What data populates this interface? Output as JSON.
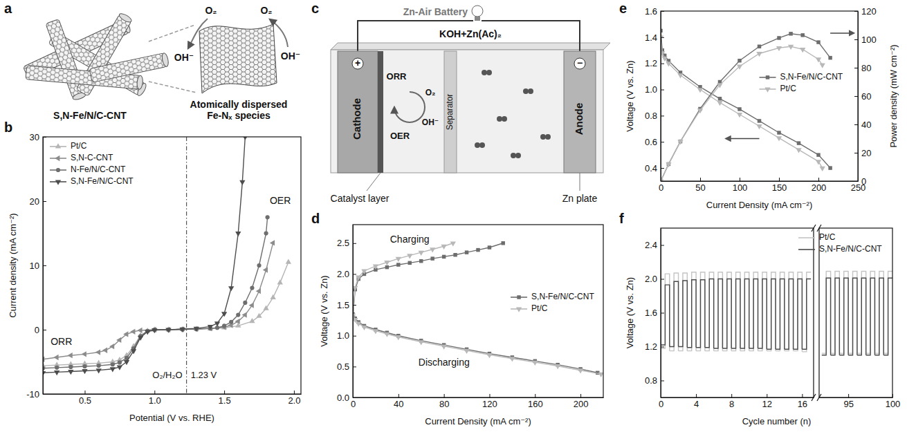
{
  "chart_data": [
    {
      "panel_label": "b",
      "type": "line",
      "x_label": "Potential (V vs. RHE)",
      "y_label": "Current density (mA cm⁻²)",
      "xlim": [
        0.2,
        2.05
      ],
      "xticks": [
        0.5,
        {
          "value": 1,
          "label": "1.0"
        },
        1.5,
        {
          "value": 2,
          "label": "2.0"
        }
      ],
      "ylim": [
        -10,
        30
      ],
      "yticks": [
        -10,
        0,
        10,
        20,
        30
      ],
      "legend": "upper left",
      "annotations": [
        "ORR",
        "OER"
      ],
      "reference_line": {
        "value": 1.23,
        "labels": [
          "O₂/H₂O",
          "1.23 V"
        ]
      },
      "series": [
        {
          "name": "Pt/C",
          "color": "#b5b5b5",
          "marker": "triangle-up",
          "x": [
            0.2,
            0.3,
            0.4,
            0.5,
            0.6,
            0.7,
            0.75,
            0.8,
            0.85,
            0.9,
            0.95,
            1.0,
            1.1,
            1.2,
            1.3,
            1.4,
            1.5,
            1.6,
            1.7,
            1.75,
            1.8,
            1.85,
            1.9,
            1.96
          ],
          "values": [
            -5.6,
            -5.5,
            -5.4,
            -5.3,
            -5.2,
            -5.0,
            -4.7,
            -4.0,
            -2.6,
            -0.9,
            -0.2,
            0,
            0,
            0.05,
            0.1,
            0.15,
            0.3,
            0.6,
            1.3,
            2.1,
            3.3,
            5.0,
            7.3,
            10.5
          ]
        },
        {
          "name": "S,N-C-CNT",
          "color": "#8c8c8c",
          "marker": "triangle-left",
          "x": [
            0.2,
            0.3,
            0.4,
            0.5,
            0.6,
            0.65,
            0.7,
            0.75,
            0.8,
            0.85,
            0.9,
            1.0,
            1.1,
            1.2,
            1.3,
            1.4,
            1.5,
            1.55,
            1.6,
            1.65,
            1.7,
            1.75,
            1.8,
            1.85
          ],
          "values": [
            -4.6,
            -4.3,
            -4.0,
            -3.8,
            -3.5,
            -3.2,
            -2.6,
            -1.6,
            -0.7,
            -0.3,
            -0.1,
            0,
            0,
            0.05,
            0.1,
            0.2,
            0.4,
            0.7,
            1.3,
            2.3,
            3.8,
            6.0,
            9.3,
            13.5
          ]
        },
        {
          "name": "N-Fe/N/C-CNT",
          "color": "#6e6e6e",
          "marker": "circle",
          "x": [
            0.2,
            0.3,
            0.4,
            0.5,
            0.6,
            0.7,
            0.75,
            0.8,
            0.85,
            0.9,
            0.95,
            1.0,
            1.1,
            1.2,
            1.3,
            1.4,
            1.45,
            1.5,
            1.55,
            1.6,
            1.65,
            1.7,
            1.75,
            1.8,
            1.81
          ],
          "values": [
            -6.0,
            -5.9,
            -5.8,
            -5.7,
            -5.6,
            -5.4,
            -5.1,
            -4.4,
            -2.9,
            -1.0,
            -0.2,
            0,
            0,
            0.05,
            0.1,
            0.2,
            0.3,
            0.6,
            1.2,
            2.3,
            4.2,
            6.5,
            10,
            15,
            17.5
          ]
        },
        {
          "name": "S,N-Fe/N/C-CNT",
          "color": "#4d4d4d",
          "marker": "triangle-down",
          "x": [
            0.2,
            0.3,
            0.4,
            0.5,
            0.6,
            0.7,
            0.75,
            0.8,
            0.85,
            0.9,
            0.95,
            1.0,
            1.1,
            1.2,
            1.3,
            1.4,
            1.45,
            1.5,
            1.55,
            1.6,
            1.63,
            1.65
          ],
          "values": [
            -6.7,
            -6.6,
            -6.5,
            -6.4,
            -6.3,
            -6.1,
            -5.8,
            -5.0,
            -3.3,
            -1.2,
            -0.3,
            -0.05,
            0,
            0.1,
            0.2,
            0.5,
            1.0,
            2.5,
            6.5,
            15,
            23,
            30
          ]
        }
      ]
    },
    {
      "panel_label": "d",
      "type": "line",
      "x_label": "Current Density (mA cm⁻²)",
      "y_label": "Voltage (V vs. Zn)",
      "xlim": [
        0,
        220
      ],
      "xticks": [
        0,
        40,
        80,
        120,
        160,
        200
      ],
      "ylim": [
        0,
        2.8
      ],
      "yticks": [
        {
          "value": 0,
          "label": "0.0"
        },
        0.5,
        {
          "value": 1,
          "label": "1.0"
        },
        1.5,
        {
          "value": 2,
          "label": "2.0"
        },
        2.5
      ],
      "legend": "right",
      "annotations": [
        "Charging",
        "Discharging"
      ],
      "series": [
        {
          "name": "S,N-Fe/N/C-CNT",
          "color": "#6d6d6d",
          "marker": "square",
          "x": [
            0,
            2,
            5,
            10,
            20,
            30,
            40,
            50,
            60,
            70,
            80,
            90,
            100,
            110,
            120,
            132
          ],
          "values": [
            1.3,
            1.75,
            1.92,
            2.0,
            2.07,
            2.11,
            2.15,
            2.18,
            2.21,
            2.25,
            2.28,
            2.31,
            2.35,
            2.39,
            2.43,
            2.5
          ]
        },
        {
          "name": "Pt/C",
          "color": "#b8b8b8",
          "marker": "triangle-down",
          "x": [
            0,
            2,
            5,
            10,
            20,
            30,
            40,
            50,
            60,
            70,
            80,
            88
          ],
          "values": [
            1.3,
            1.78,
            1.95,
            2.05,
            2.13,
            2.19,
            2.25,
            2.3,
            2.35,
            2.4,
            2.45,
            2.5
          ]
        },
        {
          "name": "S,N-Fe/N/C-CNT",
          "color": "#6d6d6d",
          "marker": "square",
          "x": [
            0,
            2,
            5,
            10,
            20,
            30,
            40,
            60,
            80,
            100,
            120,
            140,
            160,
            180,
            200,
            215
          ],
          "values": [
            1.35,
            1.28,
            1.22,
            1.16,
            1.1,
            1.05,
            1.0,
            0.92,
            0.85,
            0.78,
            0.71,
            0.65,
            0.59,
            0.53,
            0.46,
            0.4
          ]
        },
        {
          "name": "Pt/C",
          "color": "#b8b8b8",
          "marker": "triangle-down",
          "x": [
            0,
            2,
            5,
            10,
            20,
            30,
            40,
            60,
            80,
            100,
            120,
            140,
            160,
            180,
            200,
            218
          ],
          "values": [
            1.33,
            1.26,
            1.2,
            1.14,
            1.08,
            1.03,
            0.98,
            0.9,
            0.83,
            0.76,
            0.69,
            0.63,
            0.57,
            0.51,
            0.44,
            0.38
          ]
        }
      ]
    },
    {
      "panel_label": "e",
      "type": "line",
      "x_label": "Current Density (mA cm⁻²)",
      "y_label": "Voltage (V vs. Zn)",
      "y2_label": "Power density (mW cm⁻²)",
      "xlim": [
        0,
        250
      ],
      "xticks": [
        0,
        50,
        100,
        150,
        200,
        250
      ],
      "ylim": [
        0.3,
        1.6
      ],
      "yticks": [
        0.4,
        0.6,
        0.8,
        {
          "value": 1,
          "label": "1.0"
        },
        1.2,
        1.4,
        1.6
      ],
      "y2lim": [
        0,
        120
      ],
      "y2ticks": [
        0,
        20,
        40,
        60,
        80,
        100,
        120
      ],
      "legend": "center right",
      "series": [
        {
          "name": "S,N-Fe/N/C-CNT",
          "color": "#6d6d6d",
          "marker": "square",
          "x": [
            0,
            2,
            5,
            10,
            25,
            50,
            75,
            100,
            125,
            150,
            175,
            200,
            215
          ],
          "values": [
            1.45,
            1.3,
            1.26,
            1.22,
            1.13,
            1.02,
            0.93,
            0.85,
            0.76,
            0.67,
            0.59,
            0.5,
            0.4
          ]
        },
        {
          "name": "Pt/C",
          "color": "#b8b8b8",
          "marker": "triangle-down",
          "x": [
            0,
            2,
            5,
            10,
            25,
            50,
            75,
            100,
            125,
            150,
            175,
            200,
            205
          ],
          "values": [
            1.4,
            1.28,
            1.24,
            1.2,
            1.11,
            1.0,
            0.9,
            0.81,
            0.72,
            0.63,
            0.54,
            0.45,
            0.4
          ]
        },
        {
          "name": "S,N-Fe/N/C-CNT",
          "color": "#6d6d6d",
          "marker": "square",
          "axis": "y2",
          "x": [
            0,
            10,
            25,
            50,
            75,
            100,
            125,
            150,
            165,
            180,
            200,
            215
          ],
          "values": [
            0,
            12,
            28,
            51,
            70,
            85,
            95,
            101,
            104,
            103,
            98,
            87
          ]
        },
        {
          "name": "Pt/C",
          "color": "#b8b8b8",
          "marker": "triangle-down",
          "axis": "y2",
          "x": [
            0,
            10,
            25,
            50,
            75,
            100,
            125,
            150,
            165,
            180,
            200,
            205
          ],
          "values": [
            0,
            12,
            28,
            50,
            68,
            81,
            90,
            94,
            95,
            93,
            86,
            82
          ]
        }
      ]
    },
    {
      "panel_label": "f",
      "type": "line",
      "x_label": "Cycle number (n)",
      "y_label": "Voltage (V vs. Zn)",
      "x": [
        0,
        1,
        2,
        3,
        4,
        5,
        6,
        7,
        8,
        9,
        10,
        11,
        12,
        13,
        14,
        15,
        16,
        92,
        93,
        94,
        95,
        96,
        97,
        98,
        99
      ],
      "xlim": [
        [
          0,
          17.3
        ],
        [
          91.7,
          100
        ]
      ],
      "xticks": [
        0,
        4,
        8,
        12,
        16,
        95,
        100
      ],
      "ylim": [
        0.6,
        2.6
      ],
      "yticks": [
        0.8,
        1.2,
        1.6,
        {
          "value": 2,
          "label": "2.0"
        },
        2.4
      ],
      "legend": "upper right",
      "series": [
        {
          "name": "Pt/C",
          "color": "#c4c4c4",
          "charge": [
            2.06,
            2.07,
            2.07,
            2.08,
            2.08,
            2.08,
            2.08,
            2.08,
            2.08,
            2.08,
            2.08,
            2.08,
            2.08,
            2.08,
            2.08,
            2.08,
            2.08,
            2.09,
            2.09,
            2.09,
            2.09,
            2.09,
            2.09,
            2.09,
            2.09
          ],
          "discharge": [
            1.18,
            1.15,
            1.15,
            1.15,
            1.15,
            1.15,
            1.15,
            1.15,
            1.15,
            1.15,
            1.15,
            1.15,
            1.15,
            1.15,
            1.15,
            1.15,
            1.14,
            1.12,
            1.12,
            1.12,
            1.12,
            1.12,
            1.12,
            1.12,
            1.12
          ]
        },
        {
          "name": "S,N-Fe/N/C-CNT",
          "color": "#4a4a4a",
          "charge": [
            1.93,
            1.97,
            1.98,
            1.99,
            1.99,
            2.0,
            2.0,
            2.0,
            2.0,
            2.0,
            2.0,
            2.0,
            2.0,
            2.0,
            2.0,
            2.0,
            2.0,
            2.01,
            2.01,
            2.01,
            2.01,
            2.01,
            2.01,
            2.01,
            2.01
          ],
          "discharge": [
            1.22,
            1.2,
            1.2,
            1.19,
            1.19,
            1.19,
            1.18,
            1.18,
            1.18,
            1.18,
            1.18,
            1.18,
            1.17,
            1.17,
            1.17,
            1.17,
            1.17,
            1.1,
            1.1,
            1.1,
            1.1,
            1.1,
            1.1,
            1.1,
            1.1
          ]
        }
      ]
    }
  ],
  "diagrams": {
    "a": {
      "panel_label": "a",
      "material": "S,N-Fe/N/C-CNT",
      "inset_caption": "Atomically dispersed Fe-Nₓ species",
      "species": [
        "O₂",
        "O₂",
        "OH⁻",
        "OH⁻"
      ]
    },
    "c": {
      "panel_label": "c",
      "title": "Zn-Air Battery",
      "electrolyte": "KOH+Zn(Ac)₂",
      "cathode": "Cathode",
      "cathode_sign": "+",
      "separator": "Separator",
      "anode": "Anode",
      "anode_sign": "−",
      "reactions": [
        "ORR",
        "OER"
      ],
      "species": [
        "O₂",
        "OH⁻"
      ],
      "callouts": [
        "Catalyst layer",
        "Zn plate"
      ]
    }
  }
}
